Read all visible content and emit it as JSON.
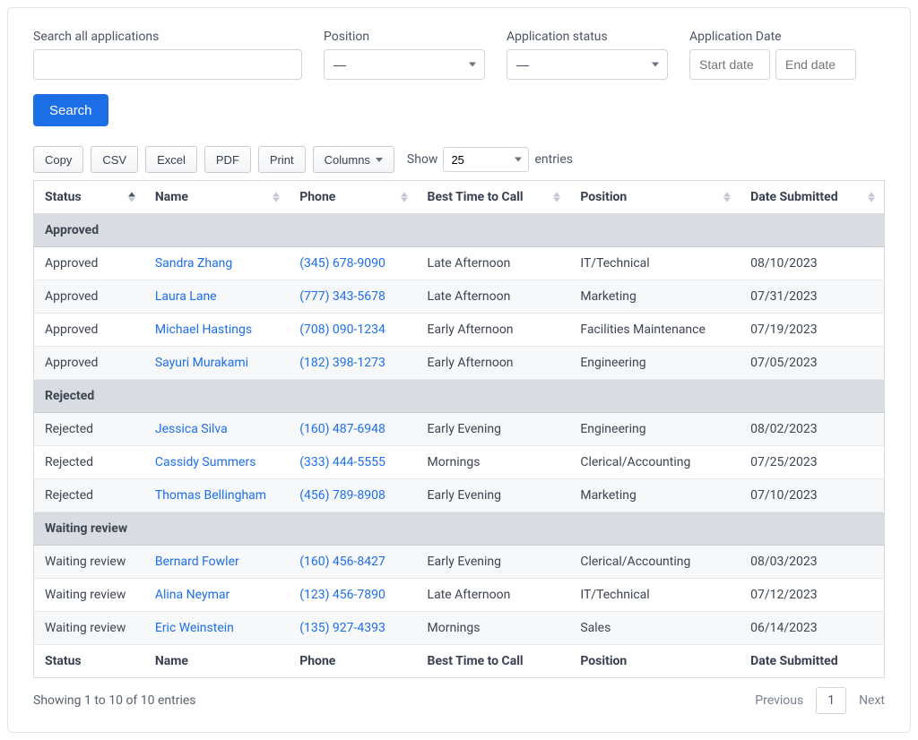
{
  "filters": {
    "search_all": {
      "label": "Search all applications",
      "value": ""
    },
    "position": {
      "label": "Position",
      "selected": "—"
    },
    "status": {
      "label": "Application status",
      "selected": "—"
    },
    "app_date": {
      "label": "Application Date",
      "start_placeholder": "Start date",
      "end_placeholder": "End date"
    },
    "search_button": "Search"
  },
  "toolbar": {
    "buttons": {
      "copy": "Copy",
      "csv": "CSV",
      "excel": "Excel",
      "pdf": "PDF",
      "print": "Print",
      "columns": "Columns"
    },
    "show_label": "Show",
    "entries_label": "entries",
    "length_value": "25"
  },
  "table": {
    "columns": {
      "status": "Status",
      "name": "Name",
      "phone": "Phone",
      "best_time": "Best Time to Call",
      "position": "Position",
      "date_submitted": "Date Submitted"
    },
    "groups": [
      {
        "label": "Approved",
        "rows": [
          {
            "status": "Approved",
            "name": "Sandra Zhang",
            "phone": "(345) 678-9090",
            "best_time": "Late Afternoon",
            "position": "IT/Technical",
            "date": "08/10/2023"
          },
          {
            "status": "Approved",
            "name": "Laura Lane",
            "phone": "(777) 343-5678",
            "best_time": "Late Afternoon",
            "position": "Marketing",
            "date": "07/31/2023"
          },
          {
            "status": "Approved",
            "name": "Michael Hastings",
            "phone": "(708) 090-1234",
            "best_time": "Early Afternoon",
            "position": "Facilities Maintenance",
            "date": "07/19/2023"
          },
          {
            "status": "Approved",
            "name": "Sayuri Murakami",
            "phone": "(182) 398-1273",
            "best_time": "Early Afternoon",
            "position": "Engineering",
            "date": "07/05/2023"
          }
        ]
      },
      {
        "label": "Rejected",
        "rows": [
          {
            "status": "Rejected",
            "name": "Jessica Silva",
            "phone": "(160) 487-6948",
            "best_time": "Early Evening",
            "position": "Engineering",
            "date": "08/02/2023"
          },
          {
            "status": "Rejected",
            "name": "Cassidy Summers",
            "phone": "(333) 444-5555",
            "best_time": "Mornings",
            "position": "Clerical/Accounting",
            "date": "07/25/2023"
          },
          {
            "status": "Rejected",
            "name": "Thomas Bellingham",
            "phone": "(456) 789-8908",
            "best_time": "Early Evening",
            "position": "Marketing",
            "date": "07/10/2023"
          }
        ]
      },
      {
        "label": "Waiting review",
        "rows": [
          {
            "status": "Waiting review",
            "name": "Bernard Fowler",
            "phone": "(160) 456-8427",
            "best_time": "Early Evening",
            "position": "Clerical/Accounting",
            "date": "08/03/2023"
          },
          {
            "status": "Waiting review",
            "name": "Alina Neymar",
            "phone": "(123) 456-7890",
            "best_time": "Late Afternoon",
            "position": "IT/Technical",
            "date": "07/12/2023"
          },
          {
            "status": "Waiting review",
            "name": "Eric Weinstein",
            "phone": "(135) 927-4393",
            "best_time": "Mornings",
            "position": "Sales",
            "date": "06/14/2023"
          }
        ]
      }
    ],
    "footer_info": "Showing 1 to 10 of 10 entries",
    "pager": {
      "previous": "Previous",
      "current": "1",
      "next": "Next"
    }
  },
  "colors": {
    "primary": "#1d6fe8",
    "link": "#1d6fe8",
    "group_bg": "#d9dce1",
    "row_stripe": "#f7f8fa",
    "border": "#d8dbe0"
  }
}
